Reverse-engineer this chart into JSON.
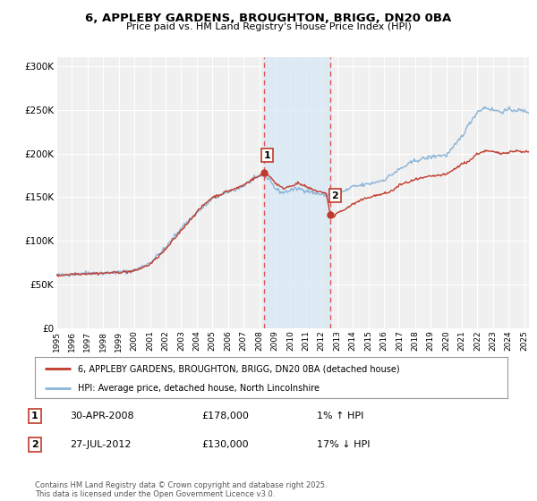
{
  "title": "6, APPLEBY GARDENS, BROUGHTON, BRIGG, DN20 0BA",
  "subtitle": "Price paid vs. HM Land Registry's House Price Index (HPI)",
  "ylim": [
    0,
    310000
  ],
  "xlim_start": 1995.0,
  "xlim_end": 2025.3,
  "yticks": [
    0,
    50000,
    100000,
    150000,
    200000,
    250000,
    300000
  ],
  "ytick_labels": [
    "£0",
    "£50K",
    "£100K",
    "£150K",
    "£200K",
    "£250K",
    "£300K"
  ],
  "xticks": [
    1995,
    1996,
    1997,
    1998,
    1999,
    2000,
    2001,
    2002,
    2003,
    2004,
    2005,
    2006,
    2007,
    2008,
    2009,
    2010,
    2011,
    2012,
    2013,
    2014,
    2015,
    2016,
    2017,
    2018,
    2019,
    2020,
    2021,
    2022,
    2023,
    2024,
    2025
  ],
  "hpi_color": "#8bb4d8",
  "price_color": "#c0392b",
  "background_color": "#ffffff",
  "plot_bg_color": "#f0f0f0",
  "grid_color": "#ffffff",
  "sale1_x": 2008.33,
  "sale1_y": 178000,
  "sale1_label": "1",
  "sale2_x": 2012.57,
  "sale2_y": 130000,
  "sale2_label": "2",
  "vline_color": "#e05555",
  "shade_color": "#d6e8f5",
  "legend_price_label": "6, APPLEBY GARDENS, BROUGHTON, BRIGG, DN20 0BA (detached house)",
  "legend_hpi_label": "HPI: Average price, detached house, North Lincolnshire",
  "table_rows": [
    {
      "num": "1",
      "date": "30-APR-2008",
      "price": "£178,000",
      "hpi": "1% ↑ HPI"
    },
    {
      "num": "2",
      "date": "27-JUL-2012",
      "price": "£130,000",
      "hpi": "17% ↓ HPI"
    }
  ],
  "footer": "Contains HM Land Registry data © Crown copyright and database right 2025.\nThis data is licensed under the Open Government Licence v3.0."
}
